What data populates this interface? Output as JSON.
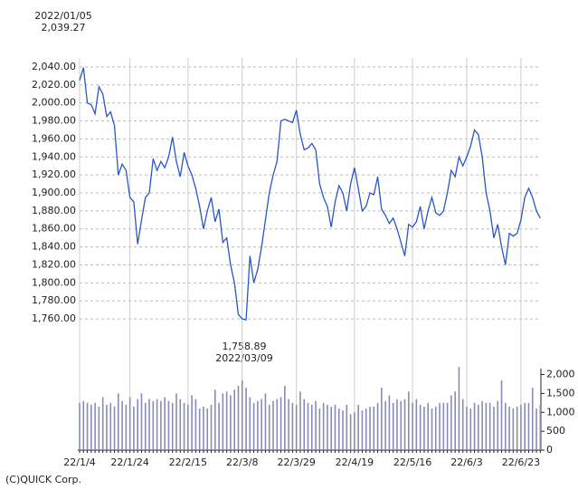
{
  "chart_data": {
    "type": "line",
    "annotations": [
      "2022/01/05",
      "2,039.27",
      "1,758.89",
      "2022/03/09"
    ],
    "footer": "(C)QUICK Corp.",
    "categories": [
      "22/1/4",
      null,
      null,
      null,
      null,
      null,
      null,
      null,
      null,
      null,
      null,
      null,
      null,
      "22/1/24",
      null,
      null,
      null,
      null,
      null,
      null,
      null,
      null,
      null,
      null,
      null,
      null,
      null,
      null,
      "22/2/15",
      null,
      null,
      null,
      null,
      null,
      null,
      null,
      null,
      null,
      null,
      null,
      null,
      null,
      "22/3/8",
      null,
      null,
      null,
      null,
      null,
      null,
      null,
      null,
      null,
      null,
      null,
      null,
      null,
      "22/3/29",
      null,
      null,
      null,
      null,
      null,
      null,
      null,
      null,
      null,
      null,
      null,
      null,
      null,
      null,
      "22/4/19",
      null,
      null,
      null,
      null,
      null,
      null,
      null,
      null,
      null,
      null,
      null,
      null,
      null,
      null,
      "22/5/16",
      null,
      null,
      null,
      null,
      null,
      null,
      null,
      null,
      null,
      null,
      null,
      null,
      null,
      "22/6/3",
      null,
      null,
      null,
      null,
      null,
      null,
      null,
      null,
      null,
      null,
      null,
      null,
      null,
      "22/6/23",
      null,
      null,
      null,
      null,
      null
    ],
    "series": [
      {
        "type": "line",
        "color": "#2a56c6",
        "values": [
          2025,
          2039.27,
          2000,
          1998,
          1988,
          2018,
          2010,
          1985,
          1990,
          1975,
          1920,
          1932,
          1925,
          1895,
          1890,
          1843,
          1870,
          1895,
          1900,
          1938,
          1925,
          1935,
          1928,
          1940,
          1962,
          1935,
          1918,
          1945,
          1930,
          1920,
          1905,
          1885,
          1860,
          1880,
          1895,
          1868,
          1882,
          1845,
          1850,
          1820,
          1800,
          1765,
          1760,
          1758.89,
          1830,
          1800,
          1815,
          1840,
          1870,
          1900,
          1920,
          1935,
          1980,
          1982,
          1980,
          1978,
          1992,
          1965,
          1948,
          1950,
          1955,
          1948,
          1910,
          1895,
          1885,
          1862,
          1890,
          1908,
          1900,
          1880,
          1910,
          1928,
          1905,
          1880,
          1885,
          1900,
          1898,
          1918,
          1882,
          1875,
          1866,
          1872,
          1860,
          1845,
          1830,
          1865,
          1862,
          1868,
          1885,
          1860,
          1880,
          1895,
          1878,
          1875,
          1880,
          1900,
          1925,
          1918,
          1940,
          1930,
          1940,
          1952,
          1970,
          1965,
          1940,
          1900,
          1880,
          1850,
          1865,
          1840,
          1820,
          1855,
          1852,
          1855,
          1870,
          1895,
          1905,
          1895,
          1880,
          1872
        ]
      },
      {
        "type": "bar",
        "axis": "y2",
        "color": "#8a8ab8",
        "values": [
          1250,
          1300,
          1250,
          1200,
          1250,
          1150,
          1400,
          1200,
          1250,
          1150,
          1500,
          1300,
          1200,
          1400,
          1150,
          1350,
          1500,
          1250,
          1350,
          1300,
          1350,
          1300,
          1400,
          1300,
          1250,
          1500,
          1350,
          1250,
          1200,
          1450,
          1350,
          1100,
          1150,
          1100,
          1200,
          1600,
          1250,
          1500,
          1550,
          1450,
          1600,
          1700,
          1850,
          1650,
          1400,
          1250,
          1300,
          1350,
          1500,
          1200,
          1300,
          1350,
          1400,
          1700,
          1350,
          1250,
          1200,
          1550,
          1350,
          1250,
          1200,
          1300,
          1100,
          1250,
          1200,
          1150,
          1200,
          1100,
          1050,
          1200,
          950,
          1000,
          1200,
          1050,
          1100,
          1150,
          1150,
          1250,
          1650,
          1300,
          1450,
          1250,
          1350,
          1300,
          1350,
          1550,
          1250,
          1350,
          1200,
          1150,
          1250,
          1100,
          1150,
          1250,
          1250,
          1250,
          1450,
          1550,
          2200,
          1350,
          1150,
          1100,
          1250,
          1200,
          1300,
          1250,
          1250,
          1150,
          1300,
          1850,
          1250,
          1150,
          1100,
          1150,
          1200,
          1250,
          1250,
          1650,
          1100,
          1200
        ]
      }
    ],
    "ylim": [
      1750,
      2050
    ],
    "yticks": [
      {
        "value": 1760,
        "label": "1,760.00"
      },
      {
        "value": 1780,
        "label": "1,780.00"
      },
      {
        "value": 1800,
        "label": "1,800.00"
      },
      {
        "value": 1820,
        "label": "1,820.00"
      },
      {
        "value": 1840,
        "label": "1,840.00"
      },
      {
        "value": 1860,
        "label": "1,860.00"
      },
      {
        "value": 1880,
        "label": "1,880.00"
      },
      {
        "value": 1900,
        "label": "1,900.00"
      },
      {
        "value": 1920,
        "label": "1,920.00"
      },
      {
        "value": 1940,
        "label": "1,940.00"
      },
      {
        "value": 1960,
        "label": "1,960.00"
      },
      {
        "value": 1980,
        "label": "1,980.00"
      },
      {
        "value": 2000,
        "label": "2,000.00"
      },
      {
        "value": 2020,
        "label": "2,020.00"
      },
      {
        "value": 2040,
        "label": "2,040.00"
      }
    ],
    "y2lim": [
      0,
      2300
    ],
    "y2ticks": [
      0,
      500,
      {
        "value": 1000,
        "label": "1,000"
      },
      {
        "value": 1500,
        "label": "1,500"
      },
      {
        "value": 2000,
        "label": "2,000"
      }
    ],
    "grid": true
  }
}
